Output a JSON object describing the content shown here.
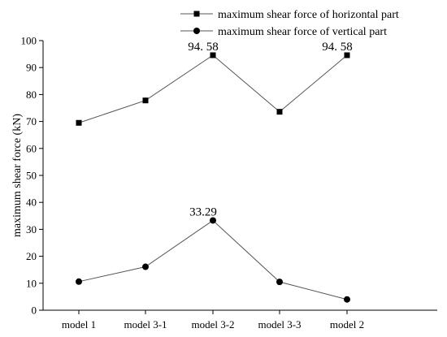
{
  "chart_data": {
    "type": "line",
    "categories": [
      "model 1",
      "model 3-1",
      "model 3-2",
      "model 3-3",
      "model 2"
    ],
    "ylabel": "maximum shear force (kN)",
    "xlabel": "",
    "ylim": [
      0,
      100
    ],
    "yticks": [
      0,
      10,
      20,
      30,
      40,
      50,
      60,
      70,
      80,
      90,
      100
    ],
    "legend_position": "top-right",
    "series": [
      {
        "name": "maximum shear force of horizontal part",
        "marker": "square",
        "values": [
          69.5,
          77.8,
          94.58,
          73.6,
          94.58
        ]
      },
      {
        "name": "maximum shear force of vertical part",
        "marker": "circle",
        "values": [
          10.6,
          16.1,
          33.29,
          10.5,
          4.0
        ]
      }
    ],
    "annotations": [
      {
        "series": 0,
        "index": 2,
        "text": "94. 58"
      },
      {
        "series": 0,
        "index": 4,
        "text": "94. 58"
      },
      {
        "series": 1,
        "index": 2,
        "text": "33.29"
      }
    ]
  }
}
